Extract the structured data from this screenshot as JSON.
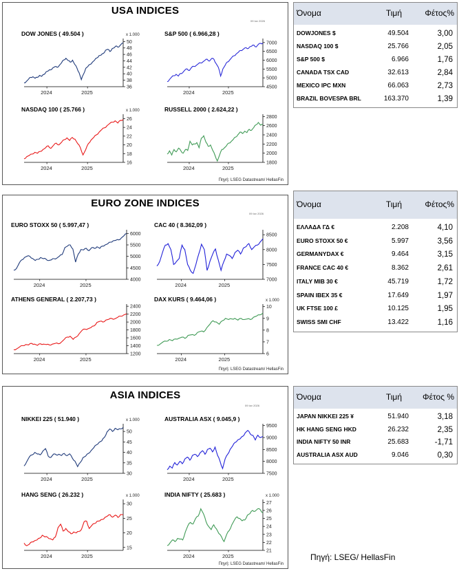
{
  "footer_source": "Πηγή: LSEG/ HellasFin",
  "panels": [
    {
      "id": "usa",
      "title": "USA INDICES",
      "date": "09 Ιαν 2026",
      "source": "Πηγή: LSEG Datastream/ HellasFin",
      "table": {
        "headers": [
          "Όνομα",
          "Τιμή",
          "Φέτος%"
        ],
        "rows": [
          {
            "name": "DOWJONES $",
            "price": "49.504",
            "ytd": "3,00"
          },
          {
            "name": "NASDAQ 100 $",
            "price": "25.766",
            "ytd": "2,05"
          },
          {
            "name": "S&P 500 $",
            "price": "6.966",
            "ytd": "1,76"
          },
          {
            "name": "CANADA TSX CAD",
            "price": "32.613",
            "ytd": "2,84"
          },
          {
            "name": "MEXICO IPC MXN",
            "price": "66.063",
            "ytd": "2,73"
          },
          {
            "name": "BRAZIL BOVESPA BRL",
            "price": "163.370",
            "ytd": "1,39"
          }
        ]
      }
    },
    {
      "id": "euro",
      "title": "EURO ZONE INDICES",
      "date": "09 Ιαν 2026",
      "source": "Πηγή: LSEG Datastream/ HellasFin",
      "table": {
        "headers": [
          "Όνομα",
          "Τιμή",
          "Φέτος%"
        ],
        "rows": [
          {
            "name": "ΕΛΛΑΔΑ ΓΔ €",
            "price": "2.208",
            "ytd": "4,10"
          },
          {
            "name": "EURO STOXX 50 €",
            "price": "5.997",
            "ytd": "3,56"
          },
          {
            "name": "GERMANYDAX €",
            "price": "9.464",
            "ytd": "3,15"
          },
          {
            "name": "FRANCE CAC 40 €",
            "price": "8.362",
            "ytd": "2,61"
          },
          {
            "name": "ITALY MIB 30 €",
            "price": "45.719",
            "ytd": "1,72"
          },
          {
            "name": "SPAIN IBEX 35 €",
            "price": "17.649",
            "ytd": "1,97"
          },
          {
            "name": "UK FTSE 100 £",
            "price": "10.125",
            "ytd": "1,95"
          },
          {
            "name": "SWISS SMI CHF",
            "price": "13.422",
            "ytd": "1,16"
          }
        ]
      }
    },
    {
      "id": "asia",
      "title": "ASIA INDICES",
      "date": "09 Ιαν 2026",
      "source": "Πηγή: LSEG Datastream/ HellasFin",
      "table": {
        "headers": [
          "Όνομα",
          "Τιμή",
          "Φέτος %"
        ],
        "rows": [
          {
            "name": "JAPAN NIKKEI 225 ¥",
            "price": "51.940",
            "ytd": "3,18"
          },
          {
            "name": "HK HANG SENG HKD",
            "price": "26.232",
            "ytd": "2,35"
          },
          {
            "name": "INDIA NIFTY 50 INR",
            "price": "25.683",
            "ytd": "-1,71"
          },
          {
            "name": "AUSTRALIA ASX AUD",
            "price": "9.046",
            "ytd": "0,30"
          }
        ]
      }
    }
  ],
  "chart_data": [
    {
      "type": "line",
      "panel": "usa",
      "title": "DOW JONES ( 49.504 )",
      "unit": "x 1.000",
      "color": "#1f3a7a",
      "xticks": [
        "2024",
        "2025"
      ],
      "yticks": [
        36,
        38,
        40,
        42,
        44,
        46,
        48,
        50
      ],
      "ylim": [
        36,
        50.5
      ],
      "series": [
        {
          "values": [
            37.2,
            37.6,
            38.3,
            38.9,
            39.1,
            38.6,
            38.9,
            39.5,
            39.2,
            39.8,
            40.6,
            40.9,
            41.2,
            41.8,
            42.2,
            42.0,
            42.6,
            43.4,
            44.3,
            44.8,
            44.1,
            43.6,
            44.2,
            42.9,
            41.8,
            40.3,
            38.2,
            39.9,
            41.7,
            42.3,
            42.9,
            43.6,
            44.2,
            44.9,
            45.6,
            45.8,
            46.3,
            47.3,
            47.6,
            46.9,
            47.8,
            48.1,
            48.6,
            48.3,
            49.1,
            49.5
          ]
        }
      ]
    },
    {
      "type": "line",
      "panel": "usa",
      "title": "S&P 500 ( 6.966,28 )",
      "unit": "",
      "color": "#2b2bd8",
      "xticks": [
        "2024",
        "2025"
      ],
      "yticks": [
        4500,
        5000,
        5500,
        6000,
        6500,
        7000
      ],
      "ylim": [
        4500,
        7150
      ],
      "series": [
        {
          "values": [
            4780,
            4900,
            5050,
            5120,
            5200,
            5100,
            5250,
            5300,
            5450,
            5500,
            5420,
            5600,
            5650,
            5700,
            5800,
            5850,
            5900,
            6000,
            6050,
            5950,
            6100,
            6050,
            5800,
            5600,
            5100,
            5500,
            5700,
            5900,
            6000,
            6150,
            6250,
            6350,
            6450,
            6550,
            6600,
            6700,
            6650,
            6750,
            6800,
            6850,
            6750,
            6900,
            6950,
            6970
          ]
        }
      ]
    },
    {
      "type": "line",
      "panel": "usa",
      "title": "NASDAQ 100 ( 25.766 )",
      "unit": "x 1.000",
      "color": "#e81818",
      "xticks": [
        "2024",
        "2025"
      ],
      "yticks": [
        16,
        18,
        20,
        22,
        24,
        26
      ],
      "ylim": [
        16,
        26.7
      ],
      "series": [
        {
          "values": [
            16.8,
            17.3,
            17.6,
            17.9,
            18.3,
            18.1,
            18.5,
            18.9,
            19.3,
            19.8,
            19.2,
            19.9,
            20.4,
            20.0,
            20.6,
            21.2,
            21.6,
            21.0,
            21.7,
            21.3,
            20.3,
            19.4,
            17.7,
            18.9,
            20.3,
            21.1,
            21.7,
            22.3,
            22.9,
            23.5,
            23.9,
            24.4,
            24.9,
            25.2,
            25.5,
            25.0,
            25.6,
            25.8
          ]
        }
      ]
    },
    {
      "type": "line",
      "panel": "usa",
      "title": "RUSSELL 2000 ( 2.624,22 )",
      "unit": "",
      "color": "#3f9a55",
      "xticks": [
        "2024",
        "2025"
      ],
      "yticks": [
        1800,
        2000,
        2200,
        2400,
        2600,
        2800
      ],
      "ylim": [
        1800,
        2820
      ],
      "series": [
        {
          "values": [
            1980,
            2050,
            1960,
            2080,
            2030,
            2110,
            2050,
            2000,
            2080,
            2060,
            2260,
            2180,
            2200,
            2230,
            2120,
            2330,
            2380,
            2240,
            2150,
            2180,
            2060,
            1950,
            1830,
            1960,
            2080,
            2110,
            2160,
            2220,
            2250,
            2300,
            2350,
            2400,
            2460,
            2430,
            2480,
            2450,
            2520,
            2500,
            2560,
            2620,
            2670,
            2610,
            2624
          ]
        }
      ]
    },
    {
      "type": "line",
      "panel": "euro",
      "title": "EURO STOXX 50 ( 5.997,47 )",
      "unit": "",
      "color": "#1f3a7a",
      "xticks": [
        "2024",
        "2025"
      ],
      "yticks": [
        4000,
        4500,
        5000,
        5500,
        6000
      ],
      "ylim": [
        4000,
        6100
      ],
      "series": [
        {
          "values": [
            4400,
            4470,
            4700,
            4850,
            4950,
            5010,
            5000,
            4910,
            4820,
            4870,
            4950,
            4900,
            4880,
            4820,
            4850,
            4900,
            4920,
            5010,
            5080,
            5380,
            5450,
            5500,
            5320,
            4750,
            5100,
            5300,
            5280,
            5350,
            5250,
            5380,
            5350,
            5420,
            5350,
            5450,
            5500,
            5550,
            5620,
            5680,
            5700,
            5720,
            5800,
            5900,
            5997
          ]
        }
      ]
    },
    {
      "type": "line",
      "panel": "euro",
      "title": "CAC 40 ( 8.362,09 )",
      "unit": "",
      "color": "#2020d8",
      "xticks": [
        "2024",
        "2025"
      ],
      "yticks": [
        7000,
        7500,
        8000,
        8500
      ],
      "ylim": [
        7000,
        8620
      ],
      "series": [
        {
          "values": [
            7450,
            7600,
            7900,
            8150,
            8200,
            8000,
            7500,
            7600,
            7700,
            8150,
            8000,
            7500,
            7300,
            7200,
            7500,
            7850,
            8180,
            8000,
            7300,
            7600,
            7850,
            8020,
            7650,
            7300,
            7600,
            7850,
            7800,
            7700,
            7900,
            7980,
            7850,
            8050,
            8100,
            8200,
            8000,
            8100,
            8150,
            8250,
            8362
          ]
        }
      ]
    },
    {
      "type": "line",
      "panel": "euro",
      "title": "ATHENS GENERAL ( 2.207,73 )",
      "unit": "",
      "color": "#e81818",
      "xticks": [
        "2024",
        "2025"
      ],
      "yticks": [
        1200,
        1400,
        1600,
        1800,
        2000,
        2200,
        2400
      ],
      "ylim": [
        1200,
        2420
      ],
      "series": [
        {
          "values": [
            1300,
            1320,
            1370,
            1400,
            1430,
            1420,
            1460,
            1440,
            1410,
            1450,
            1440,
            1430,
            1420,
            1440,
            1460,
            1450,
            1490,
            1560,
            1620,
            1640,
            1560,
            1620,
            1700,
            1790,
            1820,
            1830,
            1860,
            1900,
            1990,
            2020,
            2000,
            2050,
            2070,
            2090,
            2080,
            2120,
            2150,
            2180,
            2208
          ]
        }
      ]
    },
    {
      "type": "line",
      "panel": "euro",
      "title": "DAX KURS ( 9.464,06 )",
      "unit": "x 1.000",
      "color": "#3f9a55",
      "xticks": [
        "2024",
        "2025"
      ],
      "yticks": [
        6,
        7,
        8,
        9,
        10
      ],
      "ylim": [
        6,
        10.1
      ],
      "series": [
        {
          "values": [
            6.7,
            6.8,
            7.0,
            7.05,
            7.2,
            7.1,
            7.25,
            7.3,
            7.4,
            7.3,
            7.55,
            7.6,
            7.55,
            7.8,
            7.9,
            7.85,
            8.2,
            8.5,
            8.8,
            8.7,
            8.5,
            8.8,
            9.0,
            8.9,
            8.95,
            9.0,
            8.85,
            9.0,
            8.9,
            8.95,
            8.9,
            9.1,
            9.2,
            9.3,
            9.46
          ]
        }
      ]
    },
    {
      "type": "line",
      "panel": "asia",
      "title": "NIKKEI 225 ( 51.940 )",
      "unit": "x 1.000",
      "color": "#1f3a7a",
      "xticks": [
        "2024",
        "2025"
      ],
      "yticks": [
        30,
        35,
        40,
        45,
        50
      ],
      "ylim": [
        30,
        53
      ],
      "series": [
        {
          "values": [
            33.5,
            35.6,
            37.9,
            38.8,
            40.0,
            39.2,
            38.8,
            40.6,
            41.8,
            38.2,
            37.6,
            39.2,
            38.8,
            39.1,
            38.5,
            39.5,
            38.4,
            39.3,
            37.3,
            35.8,
            33.2,
            35.2,
            37.5,
            38.2,
            39.5,
            40.8,
            42.2,
            43.6,
            44.8,
            45.5,
            47.2,
            49.8,
            51.2,
            50.0,
            51.5,
            50.8,
            51.2,
            51.94
          ]
        }
      ]
    },
    {
      "type": "line",
      "panel": "asia",
      "title": "AUSTRALIA ASX ( 9.045,9 )",
      "unit": "",
      "color": "#2020d8",
      "xticks": [
        "2024",
        "2025"
      ],
      "yticks": [
        7500,
        8000,
        8500,
        9000,
        9500
      ],
      "ylim": [
        7500,
        9520
      ],
      "series": [
        {
          "values": [
            7650,
            7800,
            7720,
            7950,
            7850,
            8000,
            7900,
            8100,
            8180,
            8050,
            8250,
            8300,
            8200,
            8350,
            8450,
            8300,
            8500,
            8550,
            8400,
            8600,
            8250,
            8000,
            7700,
            8100,
            8300,
            8500,
            8650,
            8800,
            8900,
            8950,
            9050,
            9200,
            9300,
            9150,
            9100,
            8900,
            9100,
            9000,
            9046
          ]
        }
      ]
    },
    {
      "type": "line",
      "panel": "asia",
      "title": "HANG SENG ( 26.232 )",
      "unit": "x 1.000",
      "color": "#e81818",
      "xticks": [
        "2024",
        "2025"
      ],
      "yticks": [
        15,
        20,
        25,
        30
      ],
      "ylim": [
        14,
        31
      ],
      "series": [
        {
          "values": [
            16.5,
            15.6,
            16.1,
            16.9,
            17.3,
            17.6,
            18.2,
            19.2,
            18.6,
            18.5,
            18.0,
            17.6,
            18.6,
            21.8,
            23.0,
            20.6,
            21.5,
            20.4,
            19.7,
            20.3,
            20.0,
            20.5,
            21.2,
            23.8,
            24.0,
            21.5,
            22.6,
            23.2,
            24.0,
            24.1,
            24.6,
            25.3,
            25.8,
            26.2,
            25.4,
            26.1,
            25.3,
            26.3,
            26.232
          ]
        }
      ]
    },
    {
      "type": "line",
      "panel": "asia",
      "title": "INDIA NIFTY ( 25.683 )",
      "unit": "x 1.000",
      "color": "#3f9a55",
      "xticks": [
        "2024",
        "2025"
      ],
      "yticks": [
        21,
        22,
        23,
        24,
        25,
        26,
        27
      ],
      "ylim": [
        21,
        27.2
      ],
      "series": [
        {
          "values": [
            21.6,
            21.9,
            22.3,
            22.1,
            22.5,
            22.4,
            22.3,
            23.3,
            24.1,
            24.5,
            24.3,
            25.0,
            25.3,
            26.2,
            25.6,
            24.6,
            24.0,
            23.6,
            24.2,
            23.7,
            23.1,
            22.7,
            22.1,
            23.0,
            23.5,
            24.2,
            24.8,
            25.2,
            25.0,
            24.7,
            24.8,
            25.4,
            25.6,
            26.0,
            25.9,
            26.2,
            26.1,
            25.683
          ]
        }
      ]
    }
  ]
}
